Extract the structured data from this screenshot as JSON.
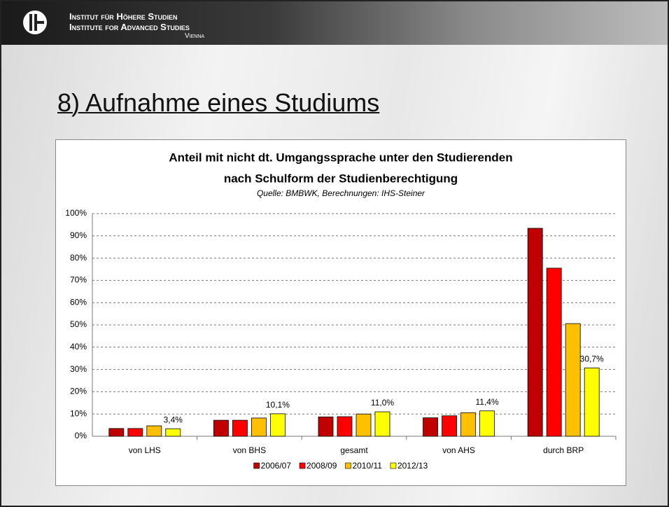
{
  "header": {
    "line1": "Institut für Höhere Studien",
    "line2": "Institute for Advanced Studies",
    "line3": "Vienna"
  },
  "slide_title": "8) Aufnahme eines Studiums",
  "chart_data": {
    "type": "bar",
    "title": [
      "Anteil mit nicht dt. Umgangssprache unter den Studierenden",
      "nach Schulform der Studienberechtigung"
    ],
    "subtitle": "Quelle: BMBWK, Berechnungen: IHS-Steiner",
    "categories": [
      "von LHS",
      "von BHS",
      "gesamt",
      "von AHS",
      "durch BRP"
    ],
    "series": [
      {
        "name": "2006/07",
        "color": "#c00000",
        "values": [
          3.5,
          7.2,
          8.7,
          8.3,
          93.4
        ]
      },
      {
        "name": "2008/09",
        "color": "#ff0000",
        "values": [
          3.5,
          7.2,
          8.8,
          9.2,
          75.5
        ]
      },
      {
        "name": "2010/11",
        "color": "#ffc000",
        "values": [
          4.7,
          8.2,
          10.0,
          10.6,
          50.6
        ]
      },
      {
        "name": "2012/13",
        "color": "#ffff00",
        "values": [
          3.4,
          10.1,
          11.0,
          11.4,
          30.7
        ],
        "value_labels": [
          "3,4%",
          "10,1%",
          "11,0%",
          "11,4%",
          "30,7%"
        ]
      }
    ],
    "ylim": [
      0,
      100
    ],
    "yticks": [
      {
        "value": 0,
        "label": "0%"
      },
      {
        "value": 10,
        "label": "10%"
      },
      {
        "value": 20,
        "label": "20%"
      },
      {
        "value": 30,
        "label": "30%"
      },
      {
        "value": 40,
        "label": "40%"
      },
      {
        "value": 50,
        "label": "50%"
      },
      {
        "value": 60,
        "label": "60%"
      },
      {
        "value": 70,
        "label": "70%"
      },
      {
        "value": 80,
        "label": "80%"
      },
      {
        "value": 90,
        "label": "90%"
      },
      {
        "value": 100,
        "label": "100%"
      }
    ],
    "grid": true,
    "legend": "bottom"
  }
}
